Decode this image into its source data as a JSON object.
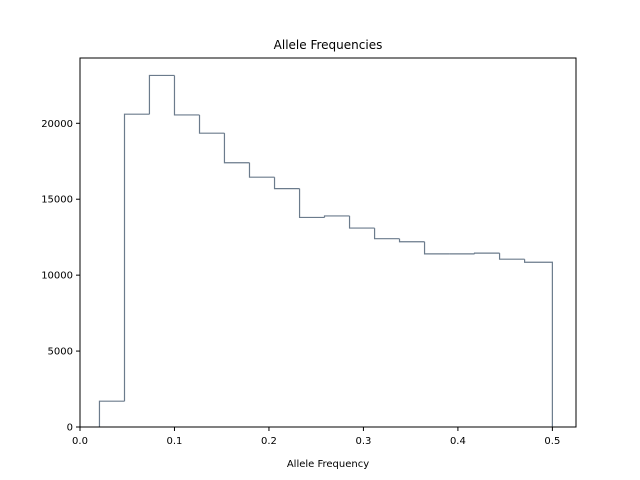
{
  "chart_data": {
    "type": "bar",
    "histtype": "step",
    "title": "Allele Frequencies",
    "xlabel": "Allele Frequency",
    "ylabel": "",
    "xlim": [
      -0.0,
      0.525
    ],
    "ylim": [
      0,
      24300
    ],
    "x_ticks": [
      0.0,
      0.1,
      0.2,
      0.3,
      0.4,
      0.5
    ],
    "x_tick_labels": [
      "0.0",
      "0.1",
      "0.2",
      "0.3",
      "0.4",
      "0.5"
    ],
    "y_ticks": [
      0,
      5000,
      10000,
      15000,
      20000
    ],
    "y_tick_labels": [
      "0",
      "5000",
      "10000",
      "15000",
      "20000"
    ],
    "bin_edges": [
      0.0206,
      0.0471,
      0.0735,
      0.1,
      0.1265,
      0.1529,
      0.1794,
      0.2059,
      0.2324,
      0.2588,
      0.2853,
      0.3118,
      0.3382,
      0.3647,
      0.3912,
      0.4176,
      0.4441,
      0.4706,
      0.5
    ],
    "values": [
      1700,
      20600,
      23150,
      20550,
      19350,
      17400,
      16450,
      15700,
      13800,
      13900,
      13100,
      12400,
      12200,
      11400,
      11400,
      11450,
      11050,
      10850
    ],
    "grid": false,
    "line_color": "#6b7b8c"
  }
}
